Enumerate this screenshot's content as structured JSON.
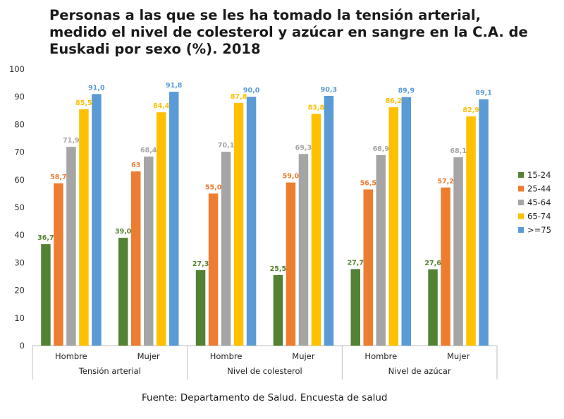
{
  "chart_data": {
    "type": "bar",
    "title_lines": [
      "Personas a las que se les ha tomado la tensión arterial,",
      "medido el nivel de colesterol y azúcar en sangre en la C.A. de",
      "Euskadi por sexo (%). 2018"
    ],
    "groups": [
      "Tensión arterial",
      "Nivel de colesterol",
      "Nivel de azúcar"
    ],
    "categories": [
      "Hombre",
      "Mujer",
      "Hombre",
      "Mujer",
      "Hombre",
      "Mujer"
    ],
    "series": [
      {
        "name": "15-24",
        "color": "#548235",
        "values": [
          36.7,
          39.0,
          27.3,
          25.5,
          27.7,
          27.6
        ],
        "labels": [
          "36,7",
          "39,0",
          "27,3",
          "25,5",
          "27,7",
          "27,6"
        ]
      },
      {
        "name": "25-44",
        "color": "#ED7D31",
        "values": [
          58.7,
          63,
          55.0,
          59.0,
          56.5,
          57.2
        ],
        "labels": [
          "58,7",
          "63",
          "55,0",
          "59,0",
          "56,5",
          "57,2"
        ]
      },
      {
        "name": "45-64",
        "color": "#A5A5A5",
        "values": [
          71.9,
          68.4,
          70.1,
          69.3,
          68.9,
          68.1
        ],
        "labels": [
          "71,9",
          "68,4",
          "70,1",
          "69,3",
          "68,9",
          "68,1"
        ]
      },
      {
        "name": "65-74",
        "color": "#FFC000",
        "values": [
          85.5,
          84.4,
          87.8,
          83.8,
          86.2,
          82.9
        ],
        "labels": [
          "85,5",
          "84,4",
          "87,8",
          "83,8",
          "86,2",
          "82,9"
        ]
      },
      {
        "name": ">=75",
        "color": "#5B9BD5",
        "values": [
          91.0,
          91.8,
          90.0,
          90.3,
          89.9,
          89.1
        ],
        "labels": [
          "91,0",
          "91,8",
          "90,0",
          "90,3",
          "89,9",
          "89,1"
        ]
      }
    ],
    "ylim": [
      0,
      100
    ],
    "yticks": [
      0,
      10,
      20,
      30,
      40,
      50,
      60,
      70,
      80,
      90,
      100
    ],
    "legend_position": "right",
    "xlabel": "",
    "ylabel": ""
  },
  "source": "Fuente: Departamento de Salud. Encuesta de salud"
}
